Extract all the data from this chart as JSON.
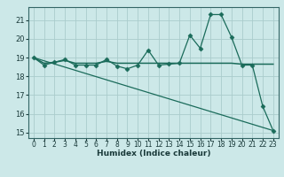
{
  "x": [
    0,
    1,
    2,
    3,
    4,
    5,
    6,
    7,
    8,
    9,
    10,
    11,
    12,
    13,
    14,
    15,
    16,
    17,
    18,
    19,
    20,
    21,
    22,
    23
  ],
  "line1": [
    19.0,
    18.6,
    18.75,
    18.9,
    18.6,
    18.6,
    18.6,
    18.9,
    18.55,
    18.4,
    18.6,
    19.4,
    18.6,
    18.65,
    18.7,
    20.2,
    19.5,
    21.3,
    21.3,
    20.1,
    18.6,
    18.6,
    16.4,
    15.1
  ],
  "line2": [
    19.0,
    18.7,
    18.75,
    18.85,
    18.7,
    18.7,
    18.7,
    18.8,
    18.7,
    18.7,
    18.7,
    18.7,
    18.7,
    18.7,
    18.7,
    18.7,
    18.7,
    18.7,
    18.7,
    18.7,
    18.65,
    18.65,
    18.65,
    18.65
  ],
  "line3_x": [
    0,
    23
  ],
  "line3_y": [
    19.0,
    15.1
  ],
  "bg_color": "#cce8e8",
  "line_color": "#1a6b5a",
  "grid_color": "#aacccc",
  "xlabel": "Humidex (Indice chaleur)",
  "xlim": [
    -0.5,
    23.5
  ],
  "ylim": [
    14.7,
    21.7
  ],
  "yticks": [
    15,
    16,
    17,
    18,
    19,
    20,
    21
  ],
  "xticks": [
    0,
    1,
    2,
    3,
    4,
    5,
    6,
    7,
    8,
    9,
    10,
    11,
    12,
    13,
    14,
    15,
    16,
    17,
    18,
    19,
    20,
    21,
    22,
    23
  ],
  "marker_size": 2.5,
  "linewidth": 1.0,
  "xlabel_fontsize": 6.5,
  "ytick_fontsize": 6,
  "xtick_fontsize": 5.5
}
